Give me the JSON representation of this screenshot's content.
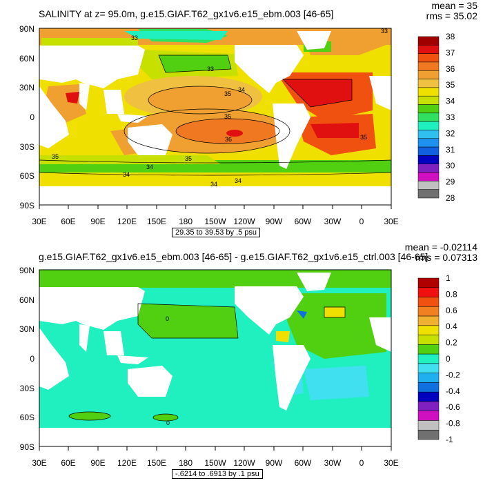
{
  "panels": [
    {
      "title": "SALINITY at z=  95.0m, g.e15.GIAF.T62_gx1v6.e15_ebm.003 [46-65]",
      "mean": "mean = 35",
      "rms": "rms = 35.02",
      "range": "29.35 to 39.53 by .5 psu",
      "lat_labels": [
        "90N",
        "60N",
        "30N",
        "0",
        "30S",
        "60S",
        "90S"
      ],
      "lon_labels": [
        "30E",
        "60E",
        "90E",
        "120E",
        "150E",
        "180",
        "150W",
        "120W",
        "90W",
        "60W",
        "30W",
        "0",
        "30E"
      ],
      "colorbar": {
        "labels": [
          "38",
          "37",
          "36",
          "35",
          "34",
          "33",
          "32",
          "31",
          "30",
          "29",
          "28"
        ],
        "colors": [
          "#a00000",
          "#e01010",
          "#f05010",
          "#f07820",
          "#f0a030",
          "#f0c040",
          "#f0e000",
          "#c8e000",
          "#50d010",
          "#30e060",
          "#20f0c0",
          "#30c0f0",
          "#1e90f0",
          "#1060e0",
          "#0000c0",
          "#8020c0",
          "#d010c0",
          "#c0c0c0",
          "#707070"
        ]
      },
      "contour_labels": [
        "33",
        "33",
        "35",
        "34",
        "35",
        "36",
        "35",
        "35",
        "34",
        "34",
        "34",
        "34",
        "35",
        "33"
      ]
    },
    {
      "title": "g.e15.GIAF.T62_gx1v6.e15_ebm.003 [46-65] - g.e15.GIAF.T62_gx1v6.e15_ctrl.003 [46-65]",
      "mean": "mean = -0.02114",
      "rms": "rms = 0.07313",
      "range": "-.6214 to .6913 by .1 psu",
      "lat_labels": [
        "90N",
        "60N",
        "30N",
        "0",
        "30S",
        "60S",
        "90S"
      ],
      "lon_labels": [
        "30E",
        "60E",
        "90E",
        "120E",
        "150E",
        "180",
        "150W",
        "120W",
        "90W",
        "60W",
        "30W",
        "0",
        "30E"
      ],
      "colorbar": {
        "labels": [
          "1",
          "0.8",
          "0.6",
          "0.4",
          "0.2",
          "0",
          "-0.2",
          "-0.4",
          "-0.6",
          "-0.8",
          "-1"
        ],
        "colors": [
          "#b00000",
          "#f01010",
          "#f05010",
          "#f08020",
          "#f0b030",
          "#f0e000",
          "#c8e000",
          "#50d010",
          "#20f0c0",
          "#40e0f0",
          "#20b0f0",
          "#1070e0",
          "#0000c0",
          "#8020c0",
          "#d010c0",
          "#c0c0c0",
          "#707070"
        ]
      },
      "contour_labels": [
        "0",
        "0"
      ]
    }
  ]
}
